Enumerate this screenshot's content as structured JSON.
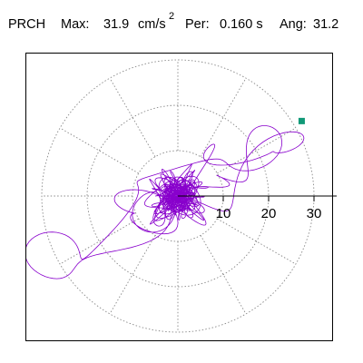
{
  "header": {
    "station": "PRCH",
    "max_label": "Max:",
    "max_value": "31.9",
    "max_unit": "cm/s",
    "max_exp": "2",
    "per_label": "Per:",
    "per_value": "0.160 s",
    "ang_label": "Ang:",
    "ang_value": "31.2"
  },
  "chart_data": {
    "type": "scatter",
    "subtype": "polar particle-motion (hodogram) plot",
    "title": "",
    "xlabel": "",
    "ylabel": "",
    "rlim": [
      0,
      35
    ],
    "ring_values": [
      10,
      20,
      30
    ],
    "tick_labels": [
      "10",
      "20",
      "30"
    ],
    "tick_axis": "positive-x",
    "spoke_angles_deg": [
      0,
      30,
      60,
      90,
      120,
      150,
      180,
      210,
      240,
      270,
      300,
      330
    ],
    "grid": true,
    "grid_style": "dotted",
    "trace": {
      "color": "#8800cc",
      "peak_amplitude": 31.9,
      "peak_angle_deg": 31.2,
      "description_values": {
        "max": 31.9,
        "period_s": 0.16,
        "angle_deg": 31.2
      }
    },
    "peak_marker": {
      "color": "#119977",
      "r": 31.9,
      "angle_deg": 31.2
    }
  }
}
